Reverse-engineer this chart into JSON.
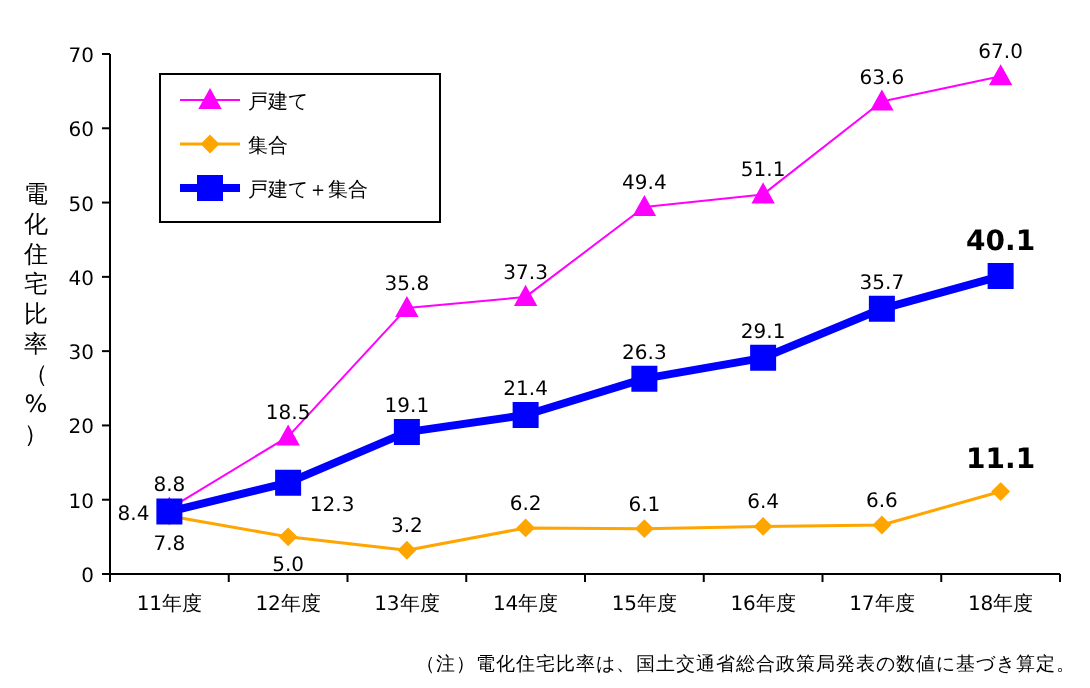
{
  "chart_data": {
    "type": "line",
    "ylabel": "電化住宅比率（%）",
    "categories": [
      "11年度",
      "12年度",
      "13年度",
      "14年度",
      "15年度",
      "16年度",
      "17年度",
      "18年度"
    ],
    "series": [
      {
        "name": "戸建て",
        "color": "#ff00ff",
        "marker": "triangle",
        "values": [
          8.8,
          18.5,
          35.8,
          37.3,
          49.4,
          51.1,
          63.6,
          67.0
        ],
        "value_labels": [
          "8.8",
          "18.5",
          "35.8",
          "37.3",
          "49.4",
          "51.1",
          "63.6",
          "67.0"
        ]
      },
      {
        "name": "集合",
        "color": "#ffa500",
        "marker": "diamond",
        "values": [
          7.8,
          5.0,
          3.2,
          6.2,
          6.1,
          6.4,
          6.6,
          11.1
        ],
        "value_labels": [
          "7.8",
          "5.0",
          "3.2",
          "6.2",
          "6.1",
          "6.4",
          "6.6",
          "11.1"
        ]
      },
      {
        "name": "戸建て＋集合",
        "color": "#0000ff",
        "marker": "square",
        "values": [
          8.4,
          12.3,
          19.1,
          21.4,
          26.3,
          29.1,
          35.7,
          40.1
        ],
        "value_labels": [
          "8.4",
          "12.3",
          "19.1",
          "21.4",
          "26.3",
          "29.1",
          "35.7",
          "40.1"
        ]
      }
    ],
    "ylim": [
      0,
      70
    ],
    "yticks": [
      0,
      10,
      20,
      30,
      40,
      50,
      60,
      70
    ],
    "legend": "top left",
    "grid": false,
    "annotations": [
      "（注）電化住宅比率は、国土交通省総合政策局発表の数値に基づき算定。"
    ]
  }
}
